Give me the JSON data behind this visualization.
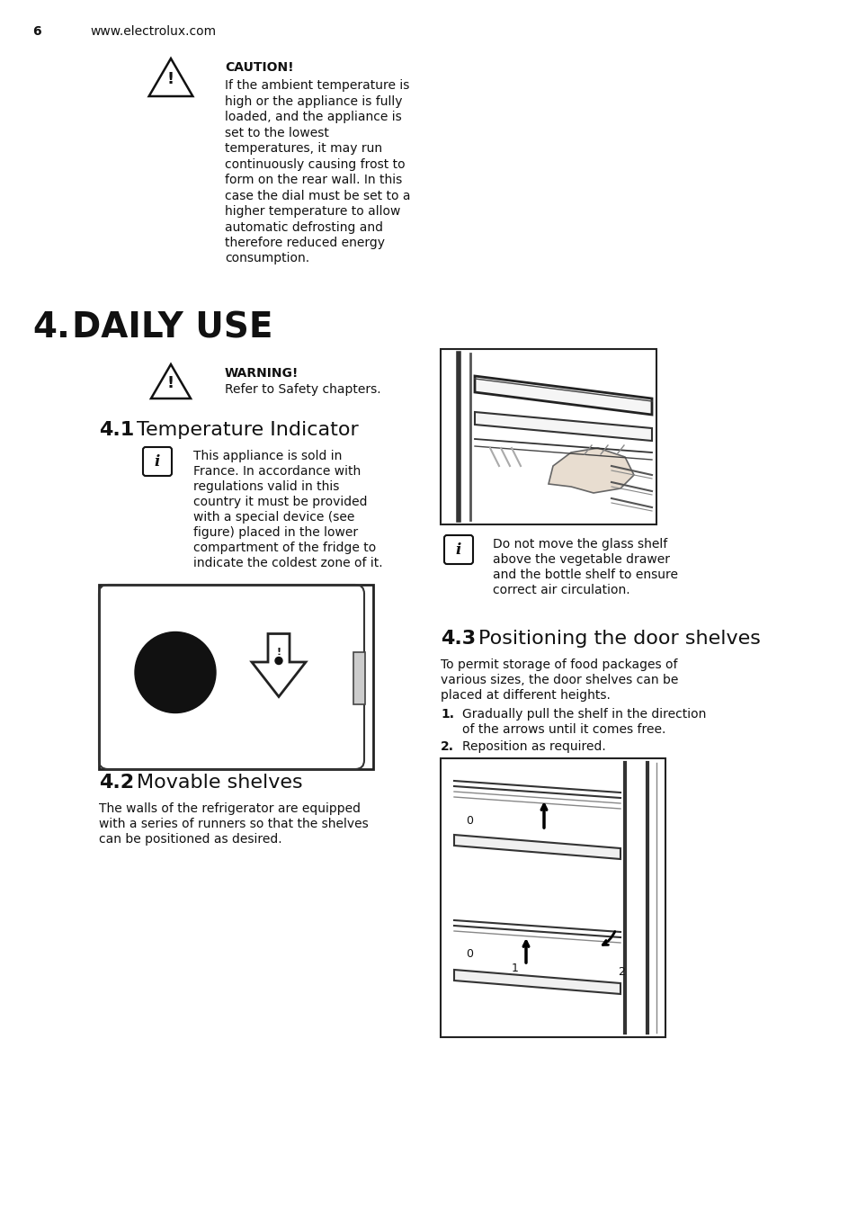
{
  "page_number": "6",
  "website": "www.electrolux.com",
  "bg": "#ffffff",
  "caution_title": "CAUTION!",
  "caution_lines": [
    "If the ambient temperature is",
    "high or the appliance is fully",
    "loaded, and the appliance is",
    "set to the lowest",
    "temperatures, it may run",
    "continuously causing frost to",
    "form on the rear wall. In this",
    "case the dial must be set to a",
    "higher temperature to allow",
    "automatic defrosting and",
    "therefore reduced energy",
    "consumption."
  ],
  "section4_num": "4.",
  "section4_txt": "DAILY USE",
  "warn_title": "WARNING!",
  "warn_text": "Refer to Safety chapters.",
  "s41_num": "4.1",
  "s41_txt": "Temperature Indicator",
  "info41_lines": [
    "This appliance is sold in",
    "France. In accordance with",
    "regulations valid in this",
    "country it must be provided",
    "with a special device (see",
    "figure) placed in the lower",
    "compartment of the fridge to",
    "indicate the coldest zone of it."
  ],
  "s42_num": "4.2",
  "s42_txt": "Movable shelves",
  "body42_lines": [
    "The walls of the refrigerator are equipped",
    "with a series of runners so that the shelves",
    "can be positioned as desired."
  ],
  "info43_lines": [
    "Do not move the glass shelf",
    "above the vegetable drawer",
    "and the bottle shelf to ensure",
    "correct air circulation."
  ],
  "s43_num": "4.3",
  "s43_txt": "Positioning the door shelves",
  "body43_lines": [
    "To permit storage of food packages of",
    "various sizes, the door shelves can be",
    "placed at different heights."
  ],
  "list1": "Gradually pull the shelf in the direction\nof the arrows until it comes free.",
  "list2": "Reposition as required."
}
